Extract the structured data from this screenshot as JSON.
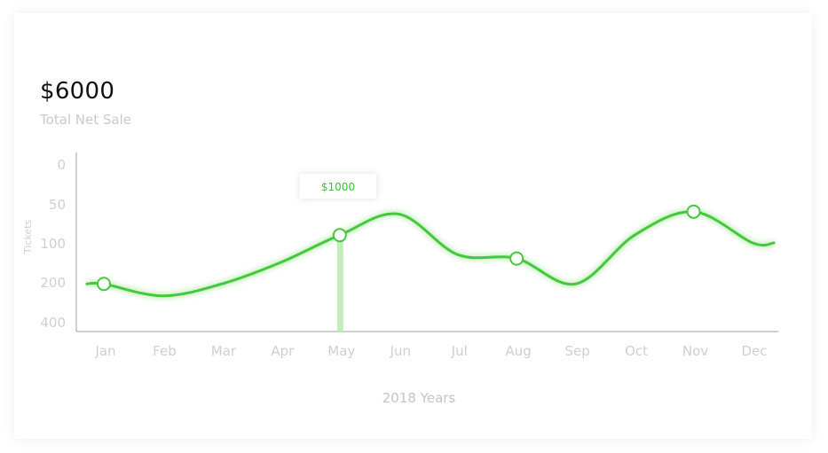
{
  "summary": {
    "value": "$6000",
    "label": "Total Net Sale"
  },
  "colors": {
    "line": "#43c93b",
    "line_glow": "#c9f0c2",
    "highlight_bar": "#c4ecbd",
    "axis": "#cfcfcf",
    "text_muted": "#cfcfcf"
  },
  "chart_data": {
    "type": "line",
    "title": "",
    "xlabel": "2018 Years",
    "ylabel": "Tickets",
    "categories": [
      "Jan",
      "Feb",
      "Mar",
      "Apr",
      "May",
      "Jun",
      "Jul",
      "Aug",
      "Sep",
      "Oct",
      "Nov",
      "Dec"
    ],
    "y_ticks": [
      "0",
      "50",
      "100",
      "200",
      "400"
    ],
    "series": [
      {
        "values": [
          210,
          270,
          210,
          150,
          90,
          63,
          130,
          140,
          210,
          90,
          60,
          100
        ],
        "marked_points": [
          "Jan",
          "May",
          "Aug",
          "Nov"
        ]
      }
    ],
    "highlight": {
      "category": "May",
      "tooltip": "$1000"
    },
    "grid": false,
    "legend": "none"
  }
}
